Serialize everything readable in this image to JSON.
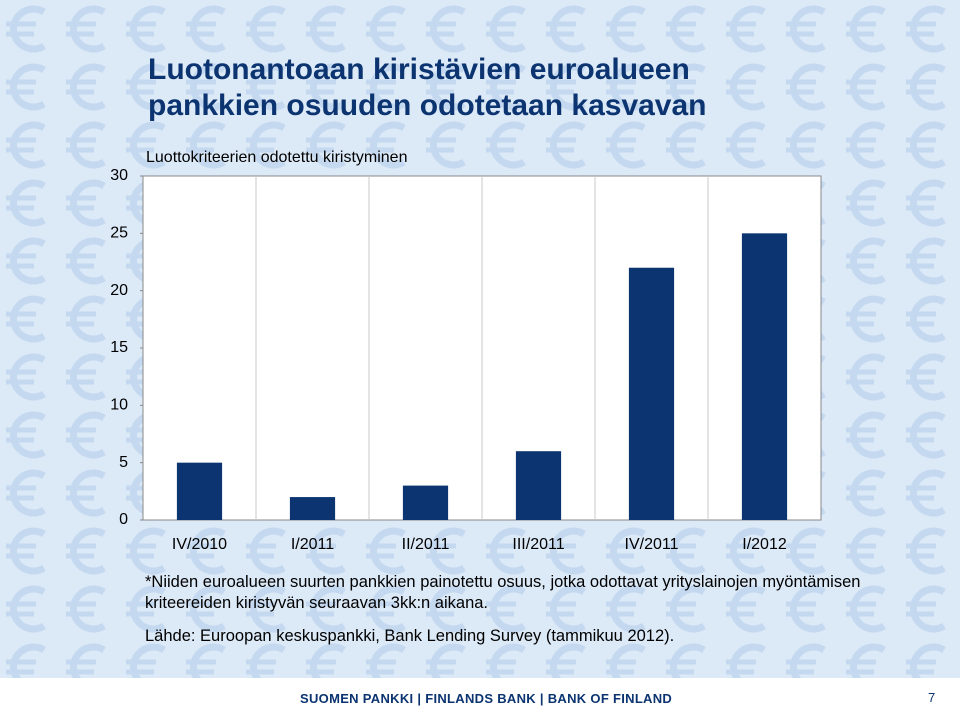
{
  "chart_data": {
    "type": "bar",
    "title": "Luotonantoaan kiristävien euroalueen pankkien osuuden odotetaan kasvavan",
    "y_label": "Luottokriteerien odotettu kiristyminen",
    "categories": [
      "IV/2010",
      "I/2011",
      "II/2011",
      "III/2011",
      "IV/2011",
      "I/2012"
    ],
    "values": [
      5,
      2,
      3,
      6,
      22,
      25
    ],
    "color": "#0b3470",
    "ylim": [
      0,
      30
    ],
    "yticks": [
      0,
      5,
      10,
      15,
      20,
      25,
      30
    ],
    "grid": true,
    "note": "*Niiden euroalueen suurten pankkien painotettu osuus, jotka odottavat yrityslainojen myöntämisen kriteereiden kiristyvän seuraavan 3kk:n aikana.",
    "source": "Lähde: Euroopan keskuspankki, Bank Lending Survey (tammikuu 2012)."
  },
  "footer": {
    "text": "SUOMEN PANKKI | FINLANDS BANK | BANK OF FINLAND",
    "page": "7"
  }
}
